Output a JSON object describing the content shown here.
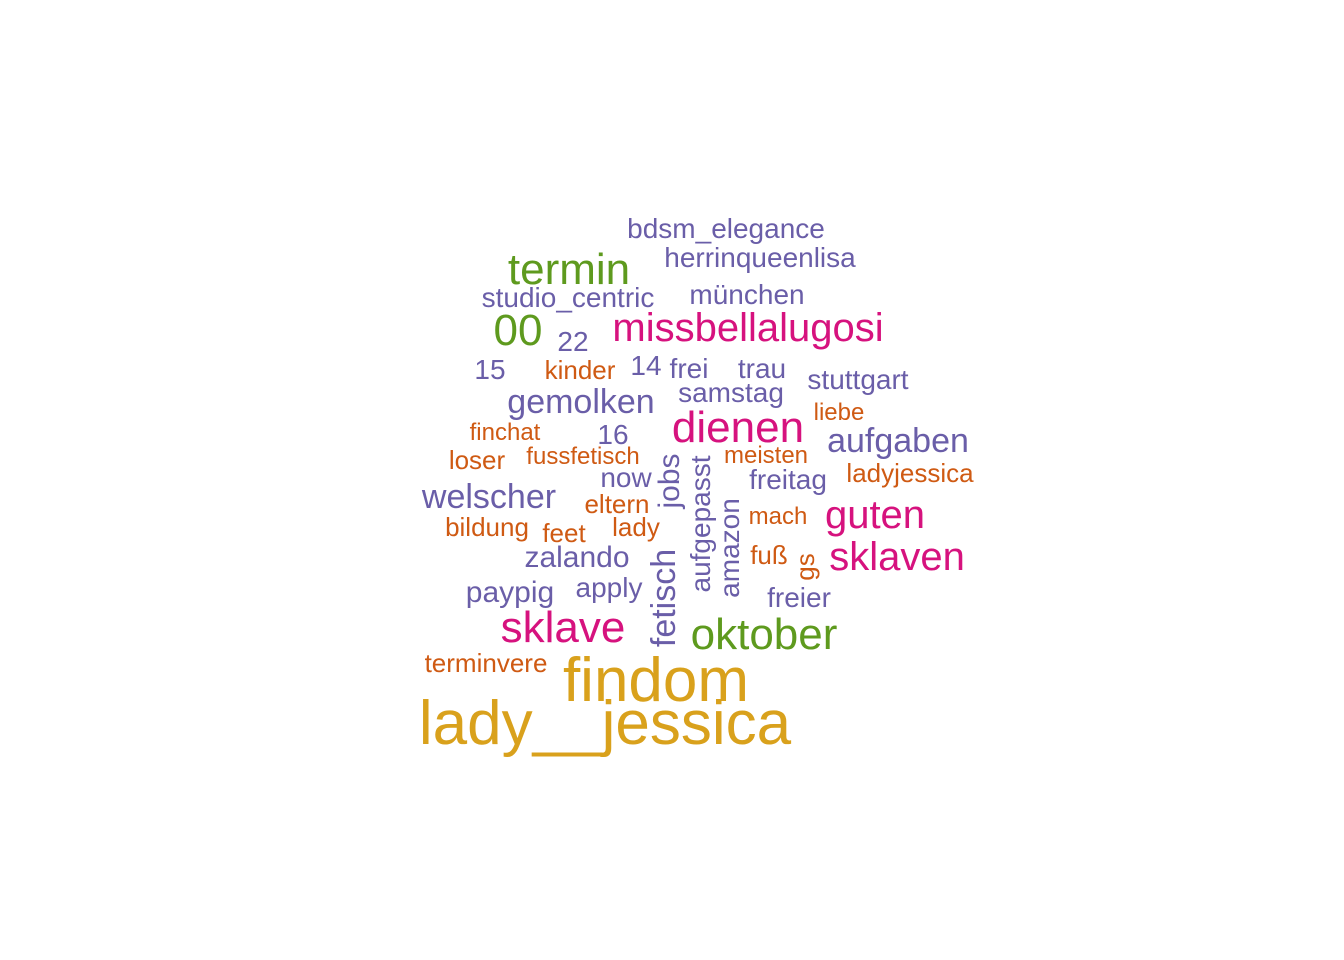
{
  "colors": {
    "gold": "#d9a11c",
    "green": "#5e9a1e",
    "pink": "#d6127e",
    "purple": "#6a5ea8",
    "orange": "#cf5a13"
  },
  "words": [
    "bdsm_elegance",
    "herrinqueenlisa",
    "termin",
    "studio_centric",
    "münchen",
    "00",
    "missbellalugosi",
    "22",
    "15",
    "kinder",
    "14",
    "frei",
    "trau",
    "stuttgart",
    "samstag",
    "gemolken",
    "liebe",
    "finchat",
    "16",
    "dienen",
    "aufgaben",
    "loser",
    "fussfetisch",
    "meisten",
    "ladyjessica",
    "now",
    "freitag",
    "welscher",
    "jobs",
    "aufgepasst",
    "eltern",
    "amazon",
    "guten",
    "bildung",
    "feet",
    "lady",
    "mach",
    "zalando",
    "fuß",
    "sklaven",
    "gs",
    "paypig",
    "apply",
    "fetisch",
    "freier",
    "sklave",
    "oktober",
    "terminvere",
    "findom",
    "lady__jessica"
  ]
}
